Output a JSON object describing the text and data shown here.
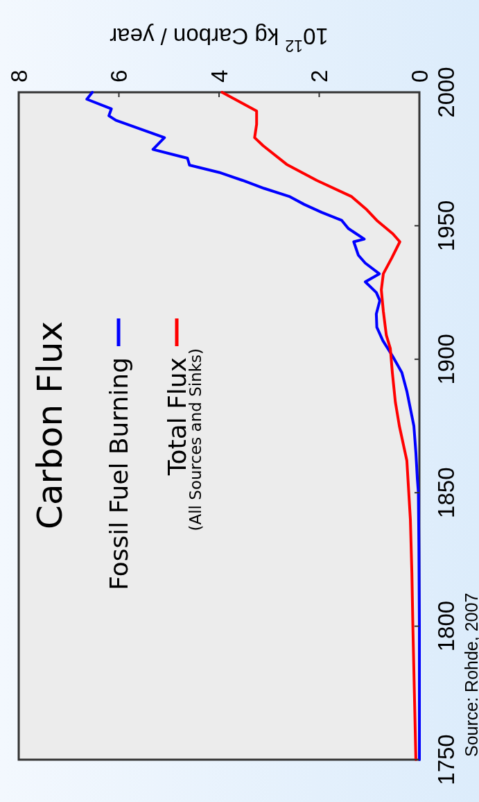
{
  "chart_data": {
    "type": "line",
    "title": "Carbon Flux",
    "xlabel": "10$^{12}$ kg Carbon / year",
    "xlim": [
      8,
      0
    ],
    "xticks": [
      8,
      6,
      4,
      2,
      0
    ],
    "ylim": [
      1750,
      2000
    ],
    "yticks": [
      1750,
      1800,
      1850,
      1900,
      1950,
      2000
    ],
    "legend": "left",
    "line_style": "solid",
    "annotations": [
      "(All Sources and Sinks)",
      "Source: Rohde, 2007"
    ],
    "series": [
      {
        "name": "Fossil Fuel Burning",
        "color": "#0000ff",
        "values": [
          1750,
          1800,
          1830,
          1850,
          1855,
          1865,
          1875,
          1888,
          1895,
          1901,
          1907,
          1912,
          1917,
          1922,
          1925,
          1929,
          1932,
          1936,
          1939,
          1944,
          1945,
          1949,
          1952,
          1955,
          1958,
          1961,
          1964,
          1967,
          1970,
          1972.7,
          1975.3,
          1978.6,
          1983,
          1989.5,
          1991.2,
          1993.8,
          1997.4,
          2000
        ],
        "x": [
          0,
          0,
          0.01,
          0.02,
          0.04,
          0.07,
          0.11,
          0.25,
          0.35,
          0.53,
          0.73,
          0.85,
          0.86,
          0.79,
          0.86,
          1.08,
          0.8,
          1.08,
          1.22,
          1.31,
          1.1,
          1.42,
          1.55,
          1.95,
          2.3,
          2.6,
          3.1,
          3.53,
          4.0,
          4.59,
          4.63,
          5.32,
          5.09,
          6.06,
          6.2,
          6.15,
          6.64,
          6.53
        ]
      },
      {
        "name": "Total Flux",
        "color": "#ff0000",
        "values": [
          1750,
          1775,
          1800,
          1820,
          1840,
          1862,
          1875,
          1884,
          1895,
          1904,
          1909,
          1918,
          1926,
          1932,
          1938,
          1944,
          1947,
          1952,
          1956,
          1961,
          1967,
          1973,
          1980,
          1983,
          1988,
          1993,
          2000
        ],
        "x": [
          0.07,
          0.1,
          0.13,
          0.15,
          0.18,
          0.25,
          0.4,
          0.48,
          0.54,
          0.58,
          0.66,
          0.72,
          0.76,
          0.72,
          0.55,
          0.39,
          0.53,
          0.85,
          1.05,
          1.36,
          2.05,
          2.65,
          3.12,
          3.29,
          3.25,
          3.25,
          3.94
        ]
      }
    ]
  }
}
